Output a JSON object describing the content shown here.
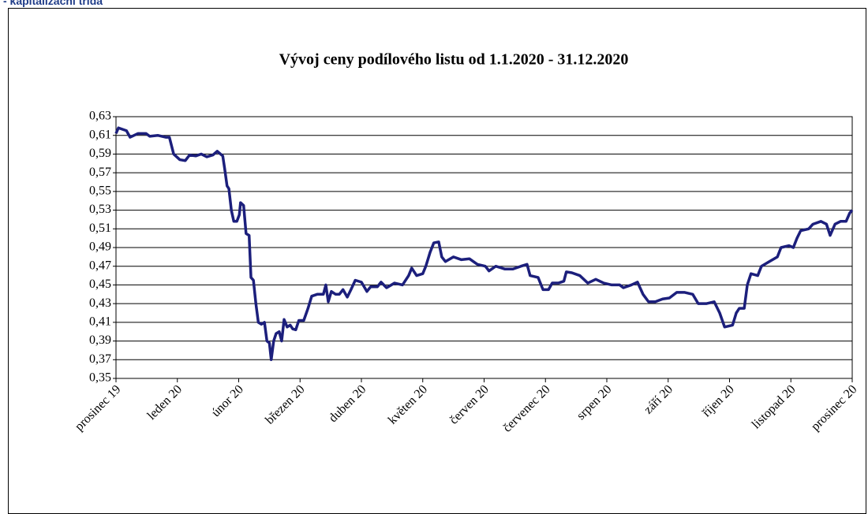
{
  "header": "- kapitalizační třída",
  "chart_data": {
    "type": "line",
    "title": "Vývoj ceny podílového listu od 1.1.2020 - 31.12.2020",
    "xlim": [
      0,
      12
    ],
    "xticks": [
      {
        "value": 0,
        "label": "prosinec 19"
      },
      {
        "value": 1,
        "label": "leden 20"
      },
      {
        "value": 2,
        "label": "únor 20"
      },
      {
        "value": 3,
        "label": "březen 20"
      },
      {
        "value": 4,
        "label": "duben 20"
      },
      {
        "value": 5,
        "label": "květen 20"
      },
      {
        "value": 6,
        "label": "červen 20"
      },
      {
        "value": 7,
        "label": "červenec 20"
      },
      {
        "value": 8,
        "label": "srpen 20"
      },
      {
        "value": 9,
        "label": "září 20"
      },
      {
        "value": 10,
        "label": "říjen 20"
      },
      {
        "value": 11,
        "label": "listopad 20"
      },
      {
        "value": 12,
        "label": "prosinec 20"
      }
    ],
    "ylim": [
      0.35,
      0.63
    ],
    "yticks": [
      {
        "value": 0.35,
        "label": "0,35"
      },
      {
        "value": 0.37,
        "label": "0,37"
      },
      {
        "value": 0.39,
        "label": "0,39"
      },
      {
        "value": 0.41,
        "label": "0,41"
      },
      {
        "value": 0.43,
        "label": "0,43"
      },
      {
        "value": 0.45,
        "label": "0,45"
      },
      {
        "value": 0.47,
        "label": "0,47"
      },
      {
        "value": 0.49,
        "label": "0,49"
      },
      {
        "value": 0.51,
        "label": "0,51"
      },
      {
        "value": 0.53,
        "label": "0,53"
      },
      {
        "value": 0.55,
        "label": "0,55"
      },
      {
        "value": 0.57,
        "label": "0,57"
      },
      {
        "value": 0.59,
        "label": "0,59"
      },
      {
        "value": 0.61,
        "label": "0,61"
      },
      {
        "value": 0.63,
        "label": "0,63"
      }
    ],
    "grid": true,
    "series": [
      {
        "color": "#1c1f7c",
        "x": [
          0,
          0.04,
          0.17,
          0.23,
          0.36,
          0.49,
          0.55,
          0.68,
          0.81,
          0.87,
          0.94,
          1.04,
          1.13,
          1.2,
          1.3,
          1.39,
          1.48,
          1.58,
          1.65,
          1.74,
          1.77,
          1.81,
          1.84,
          1.88,
          1.92,
          1.97,
          2.01,
          2.03,
          2.08,
          2.12,
          2.17,
          2.2,
          2.24,
          2.28,
          2.32,
          2.37,
          2.42,
          2.46,
          2.5,
          2.53,
          2.57,
          2.61,
          2.66,
          2.7,
          2.74,
          2.79,
          2.84,
          2.88,
          2.93,
          2.98,
          3.06,
          3.13,
          3.19,
          3.28,
          3.38,
          3.42,
          3.46,
          3.51,
          3.58,
          3.64,
          3.7,
          3.77,
          3.83,
          3.9,
          4.0,
          4.09,
          4.15,
          4.26,
          4.32,
          4.41,
          4.54,
          4.67,
          4.77,
          4.82,
          4.9,
          5.0,
          5.05,
          5.12,
          5.18,
          5.26,
          5.31,
          5.37,
          5.5,
          5.63,
          5.76,
          5.89,
          6.02,
          6.08,
          6.19,
          6.34,
          6.47,
          6.6,
          6.7,
          6.75,
          6.88,
          6.96,
          7.05,
          7.11,
          7.21,
          7.3,
          7.34,
          7.43,
          7.56,
          7.69,
          7.82,
          7.95,
          8.08,
          8.21,
          8.27,
          8.4,
          8.5,
          8.59,
          8.68,
          8.79,
          8.91,
          9.02,
          9.14,
          9.27,
          9.4,
          9.49,
          9.62,
          9.75,
          9.84,
          9.92,
          10.05,
          10.11,
          10.16,
          10.24,
          10.29,
          10.35,
          10.46,
          10.52,
          10.65,
          10.78,
          10.84,
          10.97,
          11.04,
          11.1,
          11.16,
          11.29,
          11.36,
          11.49,
          11.58,
          11.64,
          11.72,
          11.81,
          11.9,
          11.96,
          12
        ],
        "values": [
          0.612,
          0.618,
          0.615,
          0.608,
          0.612,
          0.612,
          0.609,
          0.61,
          0.608,
          0.608,
          0.59,
          0.584,
          0.583,
          0.589,
          0.588,
          0.59,
          0.587,
          0.589,
          0.593,
          0.588,
          0.575,
          0.556,
          0.553,
          0.53,
          0.518,
          0.518,
          0.525,
          0.538,
          0.535,
          0.505,
          0.503,
          0.458,
          0.455,
          0.43,
          0.41,
          0.408,
          0.41,
          0.39,
          0.388,
          0.37,
          0.39,
          0.398,
          0.4,
          0.39,
          0.413,
          0.405,
          0.407,
          0.403,
          0.402,
          0.412,
          0.412,
          0.425,
          0.438,
          0.44,
          0.44,
          0.45,
          0.432,
          0.443,
          0.44,
          0.44,
          0.445,
          0.437,
          0.445,
          0.455,
          0.453,
          0.443,
          0.448,
          0.448,
          0.453,
          0.447,
          0.452,
          0.45,
          0.46,
          0.468,
          0.46,
          0.462,
          0.47,
          0.485,
          0.495,
          0.496,
          0.48,
          0.475,
          0.48,
          0.477,
          0.478,
          0.472,
          0.47,
          0.465,
          0.47,
          0.467,
          0.467,
          0.47,
          0.472,
          0.46,
          0.458,
          0.445,
          0.445,
          0.452,
          0.452,
          0.454,
          0.464,
          0.463,
          0.46,
          0.452,
          0.456,
          0.452,
          0.45,
          0.45,
          0.447,
          0.45,
          0.453,
          0.44,
          0.432,
          0.432,
          0.435,
          0.436,
          0.442,
          0.442,
          0.44,
          0.43,
          0.43,
          0.432,
          0.42,
          0.405,
          0.407,
          0.42,
          0.425,
          0.425,
          0.45,
          0.462,
          0.46,
          0.47,
          0.475,
          0.48,
          0.49,
          0.492,
          0.49,
          0.5,
          0.508,
          0.51,
          0.515,
          0.518,
          0.515,
          0.503,
          0.515,
          0.518,
          0.518,
          0.527,
          0.53
        ]
      }
    ]
  }
}
